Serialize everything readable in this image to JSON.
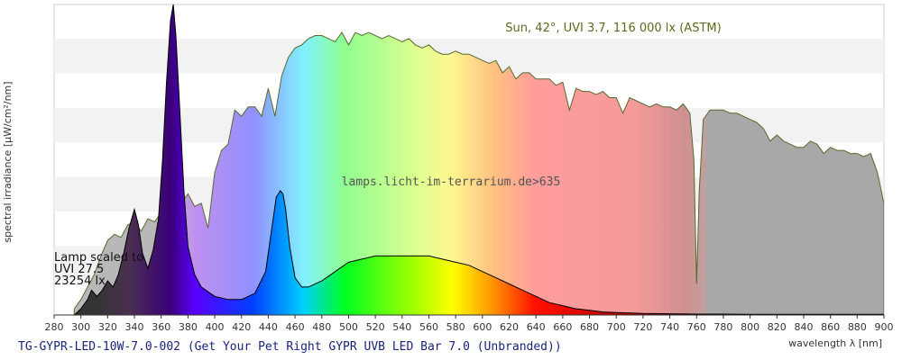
{
  "chart_data": {
    "type": "area",
    "title": "TG-GYPR-LED-10W-7.0-002 (Get Your Pet Right GYPR UVB LED Bar 7.0 (Unbranded))",
    "xlabel": "wavelength λ [nm]",
    "ylabel": "spectral irradiance [µW/cm²/nm]",
    "xlim": [
      280,
      900
    ],
    "ylim": [
      0,
      1
    ],
    "x_ticks": [
      280,
      300,
      320,
      340,
      360,
      380,
      400,
      420,
      440,
      460,
      480,
      500,
      520,
      540,
      560,
      580,
      600,
      620,
      640,
      660,
      680,
      700,
      720,
      740,
      760,
      780,
      800,
      820,
      840,
      860,
      880,
      900
    ],
    "grid": true,
    "annotations": {
      "sun_label": "Sun, 42°, UVI 3.7, 116 000 lx (ASTM)",
      "watermark": "lamps.licht-im-terrarium.de>635",
      "lamp_label": [
        "Lamp scaled to",
        "UVI 27.5",
        "23254 lx"
      ]
    },
    "series": [
      {
        "name": "Sun, 42°, UVI 3.7, 116 000 lx (ASTM)",
        "color": "#556b2f",
        "x": [
          295,
          300,
          305,
          310,
          315,
          320,
          325,
          330,
          335,
          340,
          345,
          350,
          355,
          360,
          365,
          370,
          375,
          380,
          385,
          390,
          395,
          400,
          405,
          410,
          415,
          420,
          425,
          430,
          435,
          440,
          445,
          450,
          455,
          460,
          465,
          470,
          475,
          480,
          485,
          490,
          495,
          500,
          505,
          510,
          515,
          520,
          525,
          530,
          535,
          540,
          545,
          550,
          555,
          560,
          565,
          570,
          575,
          580,
          585,
          590,
          595,
          600,
          605,
          610,
          615,
          620,
          625,
          630,
          635,
          640,
          645,
          650,
          655,
          660,
          665,
          670,
          675,
          680,
          685,
          690,
          695,
          700,
          705,
          710,
          715,
          720,
          725,
          730,
          735,
          740,
          745,
          750,
          755,
          758,
          760,
          762,
          765,
          770,
          775,
          780,
          785,
          790,
          795,
          800,
          805,
          810,
          815,
          820,
          825,
          830,
          835,
          840,
          845,
          850,
          855,
          860,
          865,
          870,
          875,
          880,
          885,
          890,
          895,
          898,
          900
        ],
        "values": [
          0.02,
          0.05,
          0.09,
          0.13,
          0.19,
          0.24,
          0.26,
          0.25,
          0.29,
          0.3,
          0.27,
          0.31,
          0.3,
          0.33,
          0.36,
          0.35,
          0.36,
          0.39,
          0.35,
          0.36,
          0.28,
          0.46,
          0.53,
          0.55,
          0.66,
          0.64,
          0.67,
          0.67,
          0.64,
          0.73,
          0.64,
          0.77,
          0.83,
          0.86,
          0.87,
          0.89,
          0.9,
          0.9,
          0.89,
          0.88,
          0.91,
          0.87,
          0.91,
          0.9,
          0.91,
          0.9,
          0.89,
          0.9,
          0.89,
          0.88,
          0.89,
          0.87,
          0.86,
          0.87,
          0.85,
          0.84,
          0.84,
          0.85,
          0.84,
          0.84,
          0.83,
          0.82,
          0.81,
          0.82,
          0.78,
          0.8,
          0.76,
          0.78,
          0.78,
          0.76,
          0.76,
          0.76,
          0.74,
          0.75,
          0.66,
          0.73,
          0.72,
          0.72,
          0.71,
          0.72,
          0.7,
          0.7,
          0.65,
          0.7,
          0.69,
          0.68,
          0.67,
          0.68,
          0.67,
          0.67,
          0.66,
          0.68,
          0.65,
          0.5,
          0.1,
          0.4,
          0.63,
          0.66,
          0.66,
          0.66,
          0.65,
          0.65,
          0.64,
          0.63,
          0.62,
          0.6,
          0.56,
          0.58,
          0.56,
          0.55,
          0.54,
          0.54,
          0.56,
          0.55,
          0.52,
          0.54,
          0.53,
          0.53,
          0.52,
          0.52,
          0.51,
          0.52,
          0.46,
          0.4,
          0.36
        ]
      },
      {
        "name": "Lamp scaled to",
        "color": "#000000",
        "x": [
          295,
          300,
          305,
          308,
          312,
          316,
          320,
          324,
          328,
          332,
          336,
          340,
          343,
          346,
          350,
          354,
          358,
          361,
          364,
          367,
          369,
          371,
          374,
          377,
          380,
          385,
          390,
          400,
          410,
          420,
          430,
          438,
          442,
          446,
          449,
          451,
          453,
          456,
          460,
          465,
          470,
          480,
          490,
          500,
          510,
          520,
          530,
          540,
          550,
          560,
          570,
          580,
          590,
          600,
          610,
          620,
          630,
          640,
          650,
          660,
          670,
          680,
          690,
          700,
          720,
          740,
          760,
          780,
          800,
          820,
          840,
          860,
          880,
          900
        ],
        "values": [
          0.0,
          0.02,
          0.05,
          0.08,
          0.06,
          0.08,
          0.11,
          0.09,
          0.13,
          0.2,
          0.28,
          0.34,
          0.29,
          0.2,
          0.15,
          0.21,
          0.31,
          0.5,
          0.75,
          0.95,
          1.0,
          0.9,
          0.65,
          0.4,
          0.22,
          0.13,
          0.09,
          0.06,
          0.05,
          0.05,
          0.07,
          0.14,
          0.26,
          0.38,
          0.4,
          0.39,
          0.34,
          0.22,
          0.12,
          0.09,
          0.09,
          0.11,
          0.14,
          0.17,
          0.18,
          0.19,
          0.19,
          0.19,
          0.19,
          0.19,
          0.18,
          0.17,
          0.16,
          0.14,
          0.12,
          0.1,
          0.08,
          0.06,
          0.04,
          0.03,
          0.02,
          0.015,
          0.01,
          0.008,
          0.005,
          0.004,
          0.003,
          0.003,
          0.002,
          0.002,
          0.002,
          0.002,
          0.002,
          0.002
        ]
      }
    ]
  }
}
